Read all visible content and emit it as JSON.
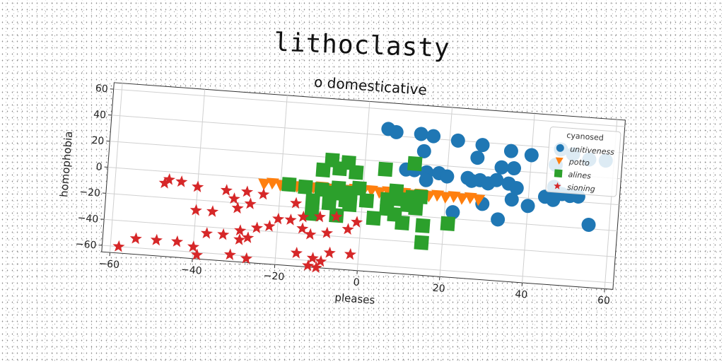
{
  "page_title": "lithoclasty",
  "chart_data": {
    "type": "scatter",
    "title": "o domesticative",
    "xlabel": "pleases",
    "ylabel": "homophobia",
    "xlim": [
      -62,
      62
    ],
    "ylim": [
      -65,
      65
    ],
    "xticks": [
      -60,
      -40,
      -20,
      0,
      20,
      40,
      60
    ],
    "yticks": [
      -60,
      -40,
      -20,
      0,
      20,
      40,
      60
    ],
    "grid": true,
    "legend_title": "cyanosed",
    "legend_position": "top-right",
    "series": [
      {
        "name": "unitiveness",
        "marker": "circle",
        "color": "#1f77b4",
        "points": [
          [
            5,
            45
          ],
          [
            7,
            43
          ],
          [
            13,
            43
          ],
          [
            16,
            42
          ],
          [
            22,
            40
          ],
          [
            28,
            38
          ],
          [
            35,
            35
          ],
          [
            40,
            33
          ],
          [
            47,
            39
          ],
          [
            50,
            36
          ],
          [
            54,
            33
          ],
          [
            58,
            33
          ],
          [
            14,
            30
          ],
          [
            27,
            28
          ],
          [
            36,
            22
          ],
          [
            33,
            22
          ],
          [
            46,
            27
          ],
          [
            10,
            15
          ],
          [
            12,
            15
          ],
          [
            15,
            14
          ],
          [
            18,
            14
          ],
          [
            20,
            12
          ],
          [
            25,
            12
          ],
          [
            26,
            10
          ],
          [
            28,
            11
          ],
          [
            30,
            9
          ],
          [
            32,
            12
          ],
          [
            35,
            10
          ],
          [
            37,
            7
          ],
          [
            15,
            8
          ],
          [
            46,
            10
          ],
          [
            48,
            5
          ],
          [
            50,
            4
          ],
          [
            52,
            4
          ],
          [
            44,
            2
          ],
          [
            46,
            0
          ],
          [
            36,
            -2
          ],
          [
            29,
            -7
          ],
          [
            40,
            -6
          ],
          [
            22,
            -15
          ],
          [
            33,
            -18
          ],
          [
            55,
            -17
          ]
        ]
      },
      {
        "name": "potto",
        "marker": "triangle-down",
        "color": "#ff7f0e",
        "points": [
          [
            -24,
            -4
          ],
          [
            -22,
            -3
          ],
          [
            -20,
            -4
          ],
          [
            -18,
            -3
          ],
          [
            -16,
            -4
          ],
          [
            -14,
            -3
          ],
          [
            -12,
            -4
          ],
          [
            -10,
            -3
          ],
          [
            -8,
            -4
          ],
          [
            -6,
            -3
          ],
          [
            -4,
            -4
          ],
          [
            -2,
            -3
          ],
          [
            0,
            -4
          ],
          [
            2,
            -3
          ],
          [
            4,
            -4
          ],
          [
            6,
            -3
          ],
          [
            8,
            -4
          ],
          [
            10,
            -3
          ],
          [
            12,
            -4
          ],
          [
            14,
            -3
          ],
          [
            16,
            -4
          ],
          [
            18,
            -3
          ],
          [
            20,
            -4
          ],
          [
            22,
            -3
          ],
          [
            24,
            -4
          ],
          [
            26,
            -3
          ],
          [
            28,
            -4
          ]
        ]
      },
      {
        "name": "alines",
        "marker": "square",
        "color": "#2ca02c",
        "points": [
          [
            -8,
            18
          ],
          [
            -4,
            17
          ],
          [
            -10,
            10
          ],
          [
            -6,
            12
          ],
          [
            -2,
            10
          ],
          [
            -18,
            -3
          ],
          [
            -14,
            -4
          ],
          [
            -10,
            -5
          ],
          [
            -7,
            -7
          ],
          [
            -6,
            -3
          ],
          [
            -3,
            -6
          ],
          [
            -1,
            -2
          ],
          [
            -8,
            -10
          ],
          [
            -4,
            -12
          ],
          [
            -12,
            -14
          ],
          [
            -8,
            -15
          ],
          [
            -3,
            -15
          ],
          [
            -12,
            -24
          ],
          [
            -6,
            -24
          ],
          [
            1,
            -11
          ],
          [
            6,
            -9
          ],
          [
            9,
            -8
          ],
          [
            12,
            -6
          ],
          [
            14,
            -5
          ],
          [
            8,
            -2
          ],
          [
            11,
            -12
          ],
          [
            13,
            -14
          ],
          [
            6,
            -16
          ],
          [
            8,
            -20
          ],
          [
            3,
            -24
          ],
          [
            10,
            -26
          ],
          [
            15,
            -27
          ],
          [
            21,
            -24
          ],
          [
            5,
            14
          ],
          [
            12,
            20
          ],
          [
            15,
            -40
          ]
        ]
      },
      {
        "name": "sioning",
        "marker": "star",
        "color": "#d62728",
        "points": [
          [
            -47,
            -6
          ],
          [
            -44,
            -7
          ],
          [
            -48,
            -9
          ],
          [
            -40,
            -10
          ],
          [
            -33,
            -11
          ],
          [
            -28,
            -11
          ],
          [
            -24,
            -12
          ],
          [
            -31,
            -17
          ],
          [
            -27,
            -20
          ],
          [
            -16,
            -17
          ],
          [
            -40,
            -28
          ],
          [
            -36,
            -28
          ],
          [
            -30,
            -24
          ],
          [
            -20,
            -30
          ],
          [
            -17,
            -30
          ],
          [
            -14,
            -27
          ],
          [
            -10,
            -26
          ],
          [
            -6,
            -25
          ],
          [
            -1,
            -28
          ],
          [
            -14,
            -36
          ],
          [
            -12,
            -40
          ],
          [
            -8,
            -38
          ],
          [
            -3,
            -34
          ],
          [
            -37,
            -45
          ],
          [
            -33,
            -45
          ],
          [
            -29,
            -41
          ],
          [
            -25,
            -38
          ],
          [
            -22,
            -36
          ],
          [
            -27,
            -46
          ],
          [
            -29,
            -48
          ],
          [
            -40,
            -56
          ],
          [
            -39,
            -62
          ],
          [
            -44,
            -53
          ],
          [
            -49,
            -53
          ],
          [
            -54,
            -53
          ],
          [
            -58,
            -60
          ],
          [
            -31,
            -60
          ],
          [
            -27,
            -62
          ],
          [
            -15,
            -55
          ],
          [
            -11,
            -58
          ],
          [
            -9,
            -60
          ],
          [
            -7,
            -53
          ],
          [
            -2,
            -53
          ],
          [
            -10,
            -65
          ],
          [
            -12,
            -64
          ]
        ]
      }
    ]
  }
}
